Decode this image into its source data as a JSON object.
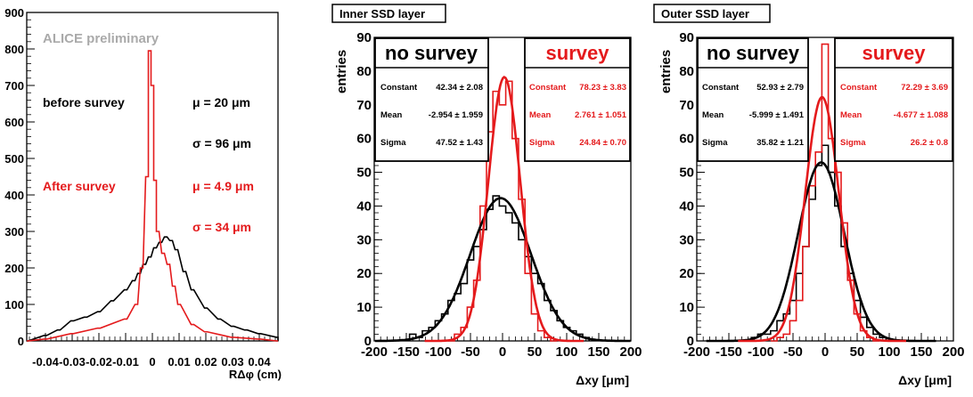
{
  "colors": {
    "before": "#000000",
    "after": "#e41a1c",
    "preliminary": "#aaaaaa"
  },
  "chart_data": [
    {
      "type": "histogram",
      "xlabel": "RΔφ (cm)",
      "xlim": [
        -0.047,
        0.047
      ],
      "ylim": [
        0,
        900
      ],
      "xticks": [
        "-0.04",
        "-0.03",
        "-0.02",
        "-0.01",
        "0",
        "0.01",
        "0.02",
        "0.03",
        "0.04"
      ],
      "yticks": [
        "0",
        "100",
        "200",
        "300",
        "400",
        "500",
        "600",
        "700",
        "800",
        "900"
      ],
      "annotation": "ALICE preliminary",
      "before_label": "before survey",
      "after_label": "After survey",
      "before_mu": "μ =   20 μm",
      "before_sigma": "σ =   96 μm",
      "after_mu": "μ =  4.9 μm",
      "after_sigma": "σ =   34 μm",
      "series": [
        {
          "key": "before",
          "x": [
            -0.047,
            -0.04,
            -0.035,
            -0.03,
            -0.025,
            -0.02,
            -0.015,
            -0.01,
            -0.007,
            -0.005,
            -0.003,
            -0.001,
            0.001,
            0.003,
            0.005,
            0.007,
            0.009,
            0.012,
            0.015,
            0.02,
            0.025,
            0.03,
            0.035,
            0.04,
            0.047
          ],
          "y": [
            0,
            15,
            30,
            55,
            65,
            80,
            110,
            140,
            165,
            185,
            210,
            230,
            255,
            270,
            285,
            275,
            250,
            190,
            140,
            90,
            60,
            40,
            30,
            20,
            10
          ]
        },
        {
          "key": "after",
          "x": [
            -0.047,
            -0.04,
            -0.03,
            -0.02,
            -0.01,
            -0.006,
            -0.004,
            -0.002,
            -0.001,
            0,
            0.001,
            0.002,
            0.004,
            0.006,
            0.008,
            0.01,
            0.015,
            0.02,
            0.03,
            0.04,
            0.047
          ],
          "y": [
            0,
            5,
            20,
            35,
            60,
            100,
            200,
            450,
            795,
            700,
            440,
            300,
            240,
            210,
            150,
            100,
            45,
            25,
            10,
            5,
            0
          ]
        }
      ]
    },
    {
      "type": "histogram",
      "panel_label": "Inner SSD layer",
      "xlabel": "Δxy [μm]",
      "ylabel": "entries",
      "xlim": [
        -200,
        200
      ],
      "ylim": [
        0,
        90
      ],
      "xticks": [
        "-200",
        "-150",
        "-100",
        "-50",
        "0",
        "50",
        "100",
        "150",
        "200"
      ],
      "yticks": [
        "0",
        "10",
        "20",
        "30",
        "40",
        "50",
        "60",
        "70",
        "80",
        "90"
      ],
      "stats": {
        "nosurvey": {
          "title": "no survey",
          "constant": "Constant",
          "constant_val": "42.34 ± 2.08",
          "mean": "Mean",
          "mean_val": "-2.954 ± 1.959",
          "sigma": "Sigma",
          "sigma_val": "47.52 ± 1.43"
        },
        "survey": {
          "title": "survey",
          "constant": "Constant",
          "constant_val": "78.23 ± 3.83",
          "mean": "Mean",
          "mean_val": "2.761 ± 1.051",
          "sigma": "Sigma",
          "sigma_val": "24.84 ± 0.70"
        }
      },
      "fits": [
        {
          "key": "nosurvey",
          "constant": 42.34,
          "mean": -2.954,
          "sigma": 47.52
        },
        {
          "key": "survey",
          "constant": 78.23,
          "mean": 2.761,
          "sigma": 24.84
        }
      ],
      "series": [
        {
          "key": "nosurvey",
          "x": [
            -140,
            -130,
            -120,
            -110,
            -100,
            -90,
            -80,
            -70,
            -60,
            -50,
            -40,
            -30,
            -20,
            -10,
            0,
            10,
            20,
            30,
            40,
            50,
            60,
            70,
            80,
            90,
            100,
            110,
            120,
            130
          ],
          "y": [
            2,
            1,
            3,
            4,
            6,
            8,
            12,
            14,
            17,
            24,
            28,
            33,
            39,
            43,
            40,
            38,
            35,
            30,
            25,
            20,
            17,
            12,
            9,
            6,
            4,
            3,
            2,
            1
          ]
        },
        {
          "key": "survey",
          "x": [
            -80,
            -70,
            -60,
            -50,
            -40,
            -30,
            -20,
            -10,
            0,
            10,
            20,
            30,
            40,
            50,
            60,
            70,
            80
          ],
          "y": [
            0,
            2,
            4,
            10,
            18,
            40,
            62,
            74,
            70,
            77,
            60,
            42,
            20,
            8,
            3,
            1,
            0
          ]
        }
      ]
    },
    {
      "type": "histogram",
      "panel_label": "Outer SSD layer",
      "xlabel": "Δxy [μm]",
      "ylabel": "entries",
      "xlim": [
        -200,
        200
      ],
      "ylim": [
        0,
        90
      ],
      "xticks": [
        "-200",
        "-150",
        "-100",
        "-50",
        "0",
        "50",
        "100",
        "150",
        "200"
      ],
      "yticks": [
        "0",
        "10",
        "20",
        "30",
        "40",
        "50",
        "60",
        "70",
        "80",
        "90"
      ],
      "stats": {
        "nosurvey": {
          "title": "no survey",
          "constant": "Constant",
          "constant_val": "52.93 ± 2.79",
          "mean": "Mean",
          "mean_val": "-5.999 ± 1.491",
          "sigma": "Sigma",
          "sigma_val": "35.82 ± 1.21"
        },
        "survey": {
          "title": "survey",
          "constant": "Constant",
          "constant_val": "72.29 ± 3.69",
          "mean": "Mean",
          "mean_val": "-4.677 ± 1.088",
          "sigma": "Sigma",
          "sigma_val": "26.2 ± 0.8"
        }
      },
      "fits": [
        {
          "key": "nosurvey",
          "constant": 52.93,
          "mean": -5.999,
          "sigma": 35.82
        },
        {
          "key": "survey",
          "constant": 72.29,
          "mean": -4.677,
          "sigma": 26.2
        }
      ],
      "series": [
        {
          "key": "nosurvey",
          "x": [
            -110,
            -100,
            -90,
            -80,
            -70,
            -60,
            -50,
            -40,
            -30,
            -20,
            -10,
            0,
            10,
            20,
            30,
            40,
            50,
            60,
            70,
            80,
            90
          ],
          "y": [
            1,
            2,
            2,
            3,
            6,
            8,
            12,
            20,
            28,
            42,
            52,
            58,
            50,
            40,
            28,
            20,
            12,
            7,
            4,
            2,
            1
          ]
        },
        {
          "key": "survey",
          "x": [
            -80,
            -70,
            -60,
            -50,
            -40,
            -30,
            -20,
            -10,
            0,
            10,
            20,
            30,
            40,
            50,
            60,
            70,
            80
          ],
          "y": [
            0,
            1,
            2,
            6,
            12,
            28,
            46,
            56,
            88,
            60,
            50,
            35,
            18,
            8,
            3,
            1,
            0
          ]
        }
      ]
    }
  ]
}
